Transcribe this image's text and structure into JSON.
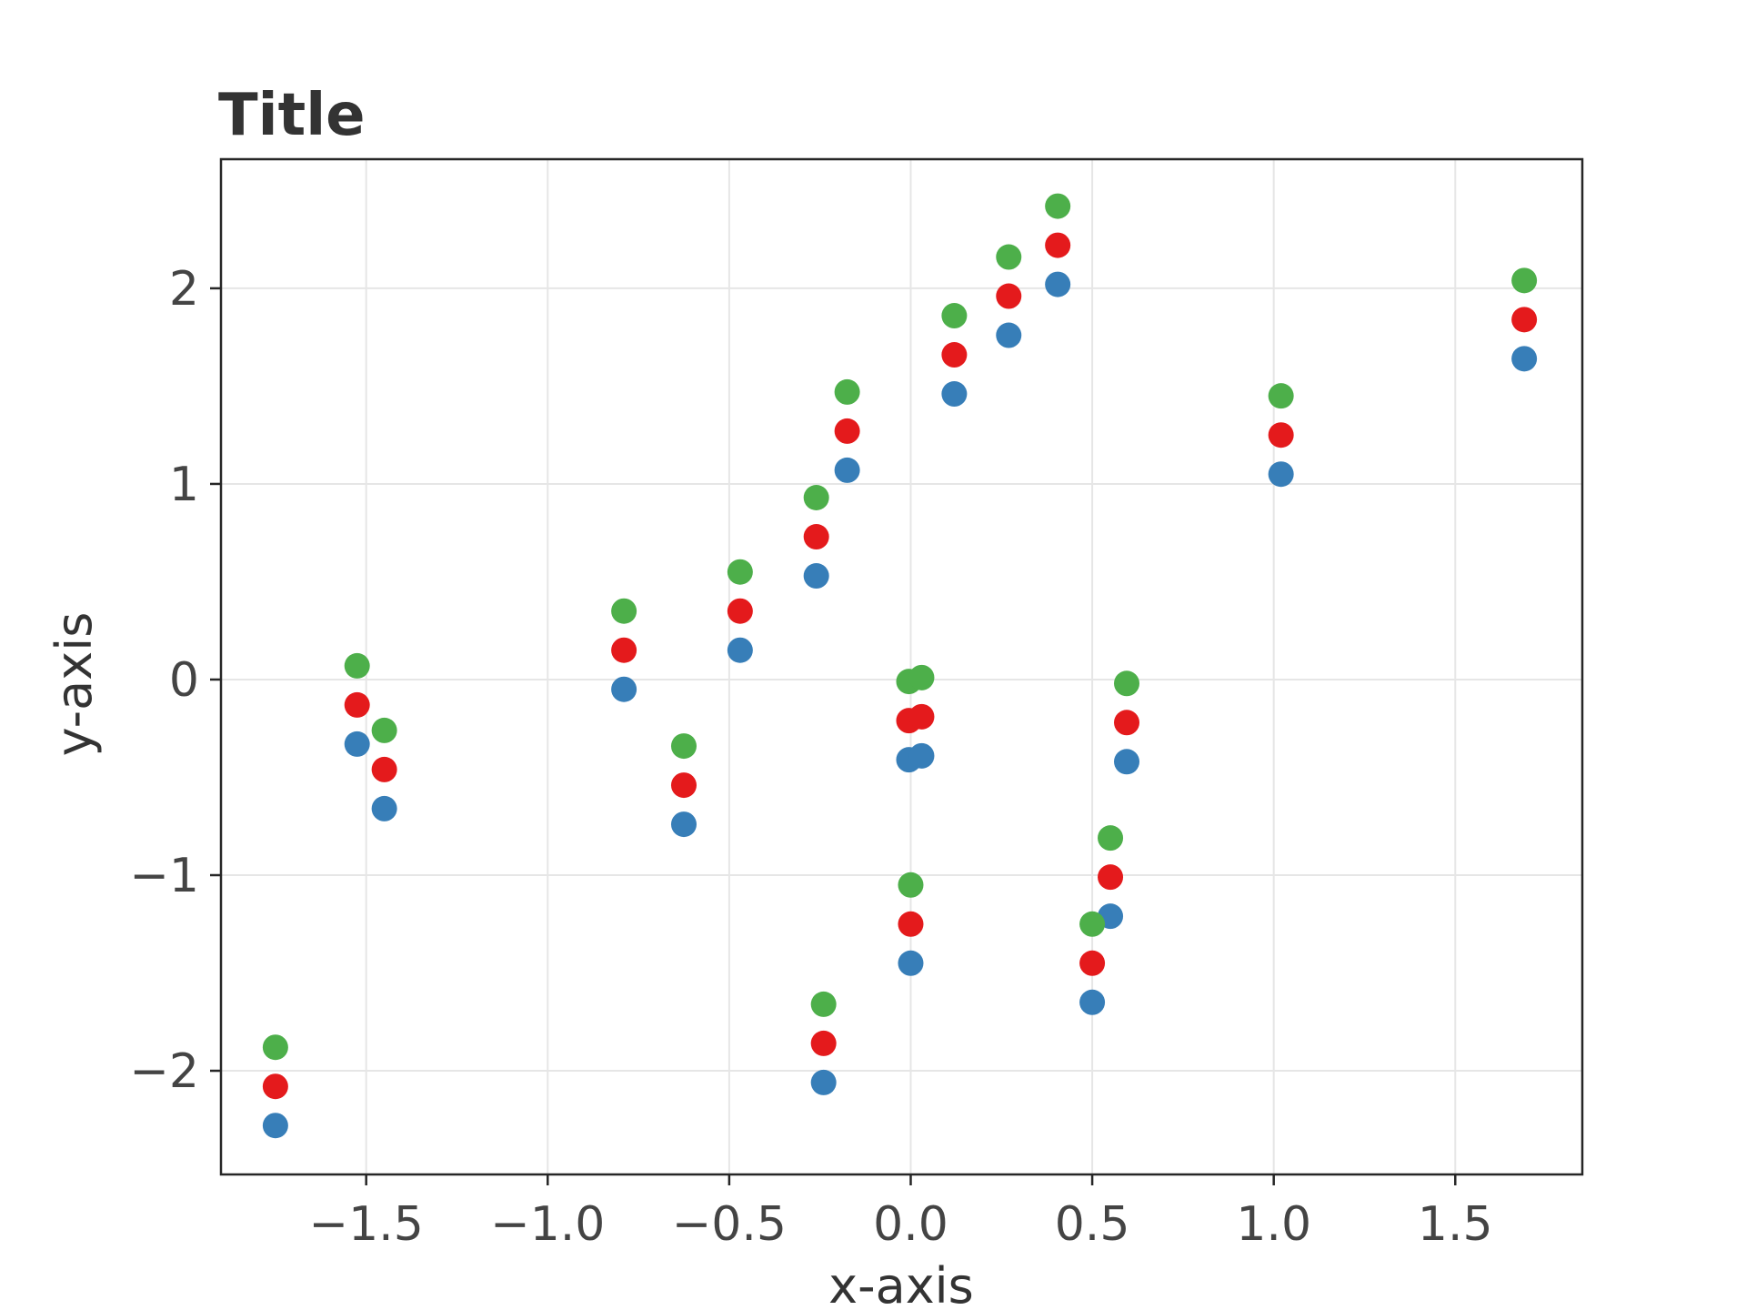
{
  "chart_data": {
    "type": "scatter",
    "title": "Title",
    "xlabel": "x-axis",
    "ylabel": "y-axis",
    "xlim": [
      -1.9,
      1.85
    ],
    "ylim": [
      -2.53,
      2.66
    ],
    "xticks": [
      -1.5,
      -1.0,
      -0.5,
      0.0,
      0.5,
      1.0,
      1.5
    ],
    "xtick_labels": [
      "−1.5",
      "−1.0",
      "−0.5",
      "0.0",
      "0.5",
      "1.0",
      "1.5"
    ],
    "yticks": [
      -2,
      -1,
      0,
      1,
      2
    ],
    "ytick_labels": [
      "−2",
      "−1",
      "0",
      "1",
      "2"
    ],
    "grid": true,
    "legend": "none",
    "x": [
      -1.75,
      -1.525,
      -1.45,
      -0.79,
      -0.625,
      -0.47,
      -0.26,
      -0.24,
      -0.175,
      -0.005,
      0.0,
      0.03,
      0.12,
      0.27,
      0.405,
      0.5,
      0.55,
      0.595,
      1.02,
      1.69
    ],
    "series": [
      {
        "color": "#377eb8",
        "y": [
          -2.28,
          -0.33,
          -0.66,
          -0.05,
          -0.74,
          0.15,
          0.53,
          -2.06,
          1.07,
          -0.41,
          -1.45,
          -0.39,
          1.46,
          1.76,
          2.02,
          -1.65,
          -1.21,
          -0.42,
          1.05,
          1.64
        ]
      },
      {
        "color": "#e41a1c",
        "y": [
          -2.08,
          -0.13,
          -0.46,
          0.15,
          -0.54,
          0.35,
          0.73,
          -1.86,
          1.27,
          -0.21,
          -1.25,
          -0.19,
          1.66,
          1.96,
          2.22,
          -1.45,
          -1.01,
          -0.22,
          1.25,
          1.84
        ]
      },
      {
        "color": "#4daf4a",
        "y": [
          -1.88,
          0.07,
          -0.26,
          0.35,
          -0.34,
          0.55,
          0.93,
          -1.66,
          1.47,
          -0.01,
          -1.05,
          0.01,
          1.86,
          2.16,
          2.42,
          -1.25,
          -0.81,
          -0.02,
          1.45,
          2.04
        ]
      }
    ]
  }
}
